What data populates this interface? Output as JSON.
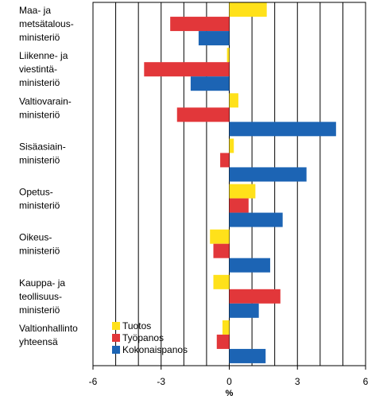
{
  "chart_data": {
    "type": "bar",
    "orientation": "horizontal",
    "categories": [
      [
        "Maa- ja",
        "metsätalous-",
        "ministeriö"
      ],
      [
        "Liikenne- ja",
        "viestintä-",
        "ministeriö"
      ],
      [
        "Valtiovarain-",
        "ministeriö"
      ],
      [
        "Sisäasiain-",
        "ministeriö"
      ],
      [
        "Opetus-",
        "ministeriö"
      ],
      [
        "Oikeus-",
        "ministeriö"
      ],
      [
        "Kauppa- ja",
        "teollisuus-",
        "ministeriö"
      ],
      [
        "Valtionhallinto",
        "yhteensä"
      ]
    ],
    "series": [
      {
        "name": "Tuotos",
        "color": "#FFE11A",
        "values": [
          1.65,
          -0.1,
          0.4,
          0.2,
          1.15,
          -0.85,
          -0.7,
          -0.3
        ]
      },
      {
        "name": "Työpanos",
        "color": "#E2373A",
        "values": [
          -2.6,
          -3.75,
          -2.3,
          -0.4,
          0.85,
          -0.7,
          2.25,
          -0.55
        ]
      },
      {
        "name": "Kokonaispanos",
        "color": "#1C64B4",
        "values": [
          -1.35,
          -1.7,
          4.7,
          3.4,
          2.35,
          1.8,
          1.3,
          1.6
        ]
      }
    ],
    "xlim": [
      -6,
      6
    ],
    "xticks": [
      -6,
      -3,
      0,
      3,
      6
    ],
    "xlabel": "%",
    "grid": "vertical",
    "legend_position": "lower-left"
  }
}
